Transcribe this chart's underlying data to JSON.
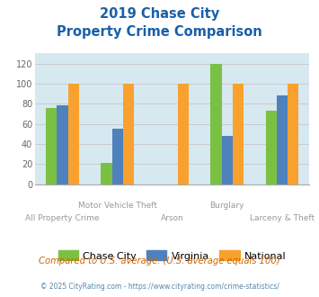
{
  "title_line1": "2019 Chase City",
  "title_line2": "Property Crime Comparison",
  "series": {
    "Chase City": [
      76,
      21,
      0,
      120,
      73
    ],
    "Virginia": [
      78,
      55,
      0,
      48,
      88
    ],
    "National": [
      100,
      100,
      100,
      100,
      100
    ]
  },
  "colors": {
    "Chase City": "#7ac143",
    "Virginia": "#4f81bd",
    "National": "#f9a12e"
  },
  "top_labels": [
    "",
    "Motor Vehicle Theft",
    "",
    "Burglary",
    ""
  ],
  "bottom_labels": [
    "All Property Crime",
    "",
    "Arson",
    "",
    "Larceny & Theft"
  ],
  "ylim": [
    0,
    130
  ],
  "yticks": [
    0,
    20,
    40,
    60,
    80,
    100,
    120
  ],
  "grid_color": "#cccccc",
  "bg_color": "#d6e8f0",
  "title_color": "#1a5fa8",
  "xlabel_color": "#999999",
  "footer_note": "Compared to U.S. average. (U.S. average equals 100)",
  "footer_copy": "© 2025 CityRating.com - https://www.cityrating.com/crime-statistics/",
  "footer_note_color": "#cc6600",
  "footer_copy_color": "#5588aa"
}
